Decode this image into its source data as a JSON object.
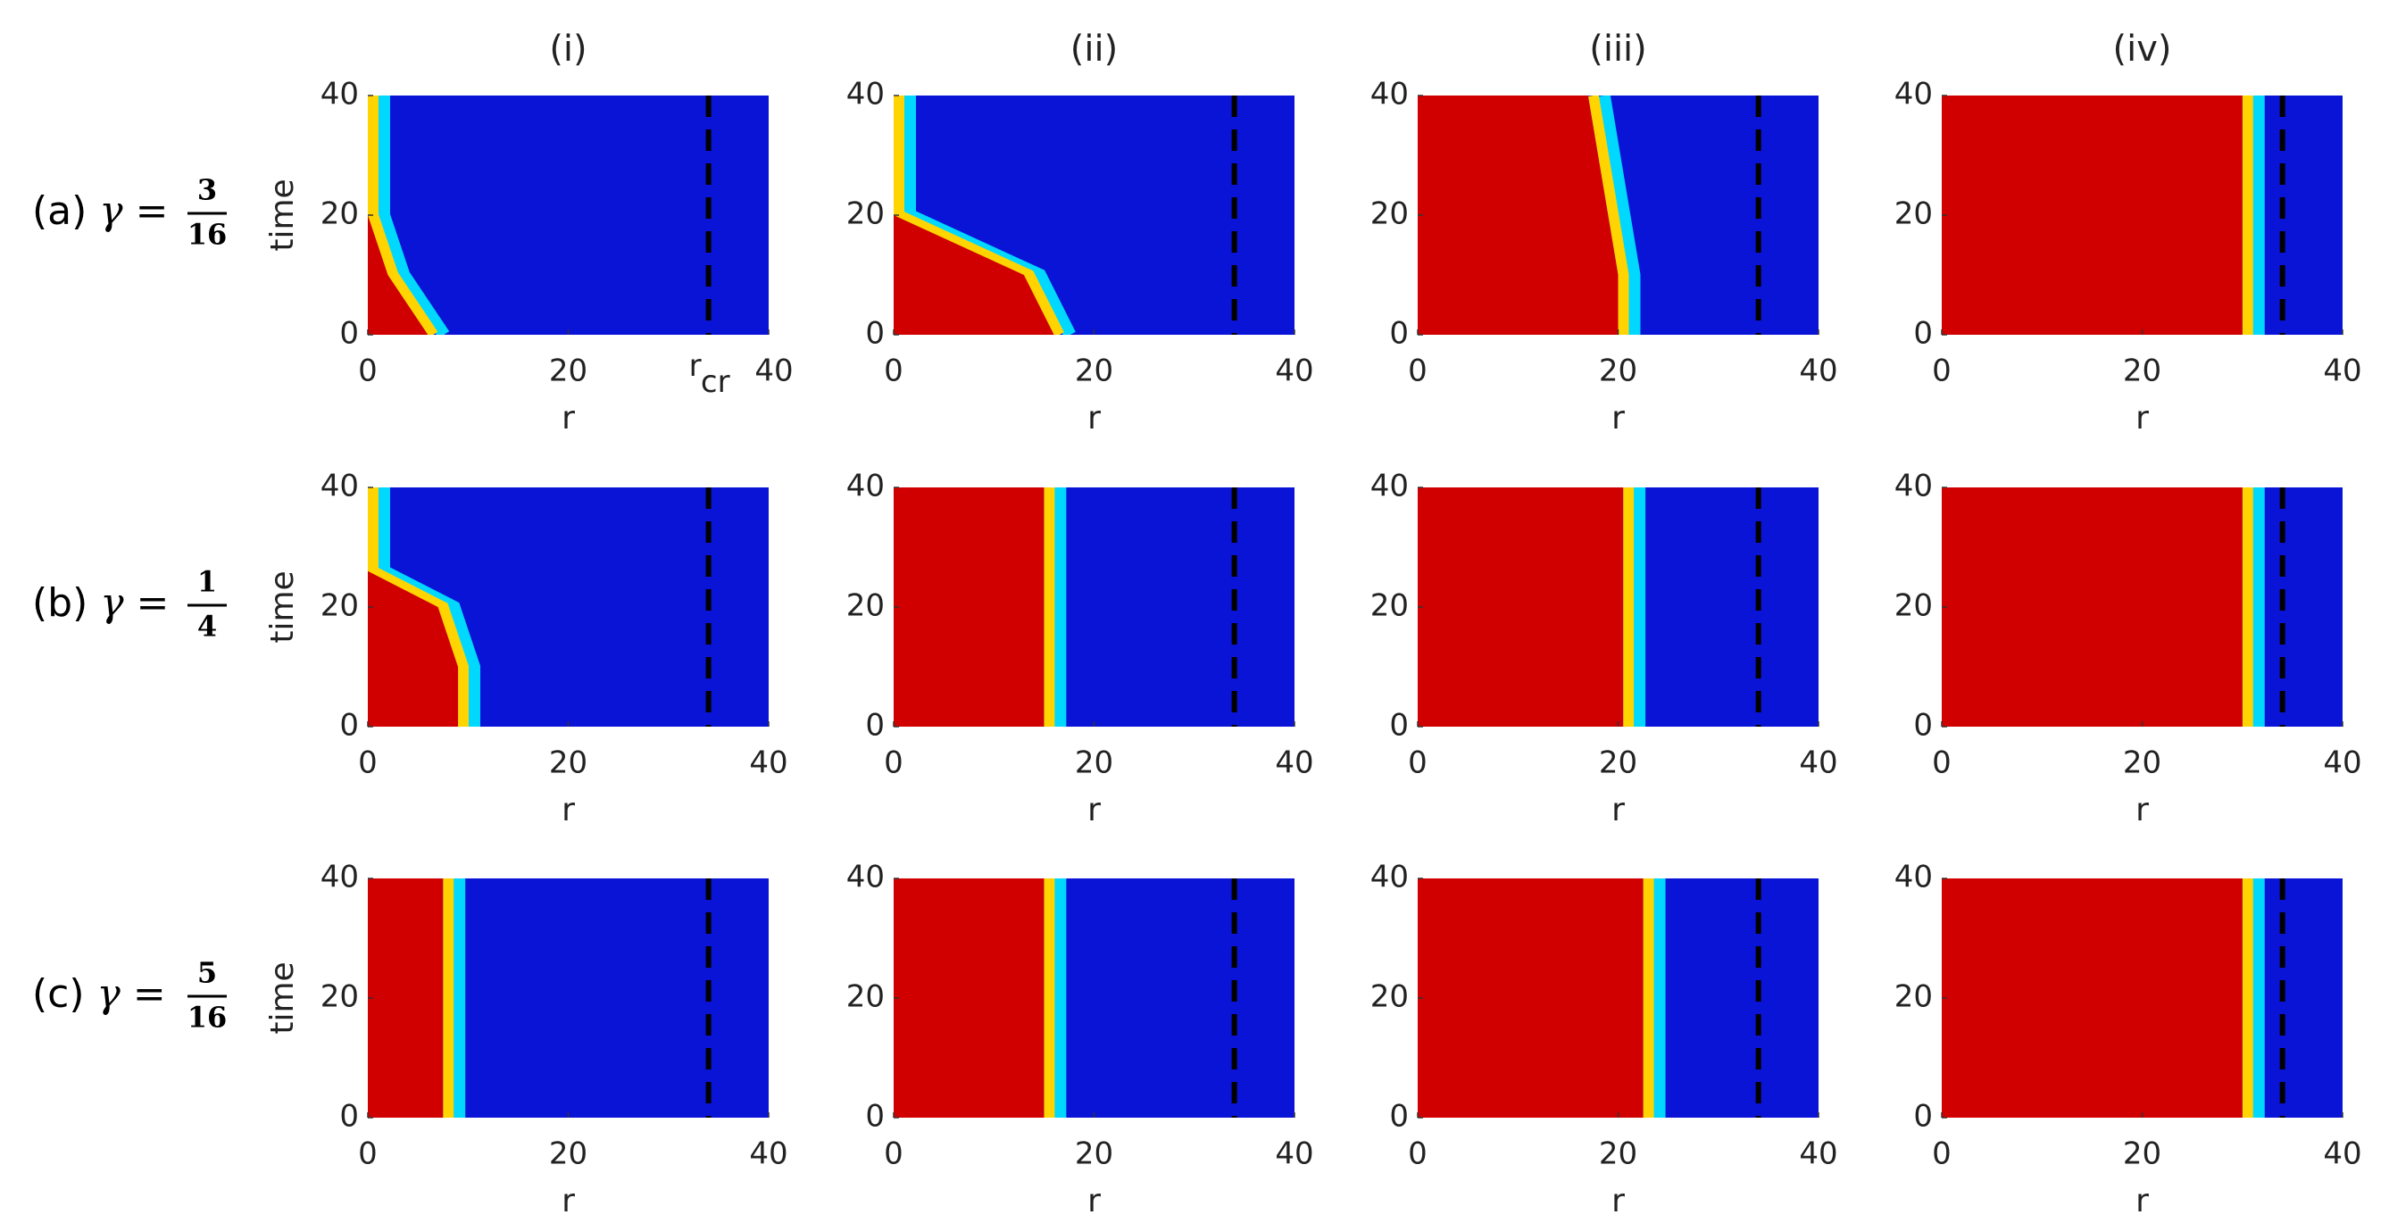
{
  "column_titles": [
    "(i)",
    "(ii)",
    "(iii)",
    "(iv)"
  ],
  "row_labels": [
    {
      "prefix": "(a)",
      "symbol": "γ =",
      "num": "3",
      "den": "16"
    },
    {
      "prefix": "(b)",
      "symbol": "γ =",
      "num": "1",
      "den": "4"
    },
    {
      "prefix": "(c)",
      "symbol": "γ =",
      "num": "5",
      "den": "16"
    }
  ],
  "rcr_label": {
    "main": "r",
    "sub": "cr"
  },
  "colors": {
    "low": "#0a14d6",
    "mid_low": "#00d8ff",
    "mid_high": "#ffd400",
    "high": "#d00000",
    "marker": "#000000"
  },
  "chart_data": [
    {
      "type": "heatmap",
      "ylabel": "time",
      "xlabel": "r",
      "x": [
        0,
        10,
        20,
        30,
        40
      ],
      "values": [
        6,
        2,
        0,
        0,
        0
      ],
      "rcr": 34,
      "xlim": [
        0,
        40
      ],
      "ylim": [
        0,
        40
      ],
      "xticks": [
        0,
        20,
        40
      ],
      "yticks": [
        0,
        20,
        40
      ]
    },
    {
      "type": "heatmap",
      "xlabel": "r",
      "x": [
        0,
        10,
        20,
        30,
        40
      ],
      "values": [
        16,
        13,
        0,
        0,
        0
      ],
      "rcr": 34,
      "xlim": [
        0,
        40
      ],
      "ylim": [
        0,
        40
      ],
      "xticks": [
        0,
        20,
        40
      ],
      "yticks": [
        0,
        20,
        40
      ]
    },
    {
      "type": "heatmap",
      "xlabel": "r",
      "x": [
        0,
        10,
        20,
        30,
        40
      ],
      "values": [
        20,
        20,
        19,
        18,
        17
      ],
      "rcr": 34,
      "xlim": [
        0,
        40
      ],
      "ylim": [
        0,
        40
      ],
      "xticks": [
        0,
        20,
        40
      ],
      "yticks": [
        0,
        20,
        40
      ]
    },
    {
      "type": "heatmap",
      "xlabel": "r",
      "x": [
        0,
        10,
        20,
        30,
        40
      ],
      "values": [
        30,
        30,
        30,
        30,
        30
      ],
      "rcr": 34,
      "xlim": [
        0,
        40
      ],
      "ylim": [
        0,
        40
      ],
      "xticks": [
        0,
        20,
        40
      ],
      "yticks": [
        0,
        20,
        40
      ]
    },
    {
      "type": "heatmap",
      "ylabel": "time",
      "xlabel": "r",
      "x": [
        0,
        10,
        20,
        26,
        30,
        40
      ],
      "values": [
        9,
        9,
        7,
        0,
        0,
        0
      ],
      "rcr": 34,
      "xlim": [
        0,
        40
      ],
      "ylim": [
        0,
        40
      ],
      "xticks": [
        0,
        20,
        40
      ],
      "yticks": [
        0,
        20,
        40
      ]
    },
    {
      "type": "heatmap",
      "xlabel": "r",
      "x": [
        0,
        10,
        20,
        30,
        40
      ],
      "values": [
        15,
        15,
        15,
        15,
        15
      ],
      "rcr": 34,
      "xlim": [
        0,
        40
      ],
      "ylim": [
        0,
        40
      ],
      "xticks": [
        0,
        20,
        40
      ],
      "yticks": [
        0,
        20,
        40
      ]
    },
    {
      "type": "heatmap",
      "xlabel": "r",
      "x": [
        0,
        10,
        20,
        30,
        40
      ],
      "values": [
        20.5,
        20.5,
        20.5,
        20.5,
        20.5
      ],
      "rcr": 34,
      "xlim": [
        0,
        40
      ],
      "ylim": [
        0,
        40
      ],
      "xticks": [
        0,
        20,
        40
      ],
      "yticks": [
        0,
        20,
        40
      ]
    },
    {
      "type": "heatmap",
      "xlabel": "r",
      "x": [
        0,
        10,
        20,
        30,
        40
      ],
      "values": [
        30,
        30,
        30,
        30,
        30
      ],
      "rcr": 34,
      "xlim": [
        0,
        40
      ],
      "ylim": [
        0,
        40
      ],
      "xticks": [
        0,
        20,
        40
      ],
      "yticks": [
        0,
        20,
        40
      ]
    },
    {
      "type": "heatmap",
      "ylabel": "time",
      "xlabel": "r",
      "x": [
        0,
        10,
        20,
        30,
        40
      ],
      "values": [
        7.5,
        7.5,
        7.5,
        7.5,
        7.5
      ],
      "rcr": 34,
      "xlim": [
        0,
        40
      ],
      "ylim": [
        0,
        40
      ],
      "xticks": [
        0,
        20,
        40
      ],
      "yticks": [
        0,
        20,
        40
      ]
    },
    {
      "type": "heatmap",
      "xlabel": "r",
      "x": [
        0,
        10,
        20,
        30,
        40
      ],
      "values": [
        15,
        15,
        15,
        15,
        15
      ],
      "rcr": 34,
      "xlim": [
        0,
        40
      ],
      "ylim": [
        0,
        40
      ],
      "xticks": [
        0,
        20,
        40
      ],
      "yticks": [
        0,
        20,
        40
      ]
    },
    {
      "type": "heatmap",
      "xlabel": "r",
      "x": [
        0,
        10,
        20,
        30,
        40
      ],
      "values": [
        22.5,
        22.5,
        22.5,
        22.5,
        22.5
      ],
      "rcr": 34,
      "xlim": [
        0,
        40
      ],
      "ylim": [
        0,
        40
      ],
      "xticks": [
        0,
        20,
        40
      ],
      "yticks": [
        0,
        20,
        40
      ]
    },
    {
      "type": "heatmap",
      "xlabel": "r",
      "x": [
        0,
        10,
        20,
        30,
        40
      ],
      "values": [
        30,
        30,
        30,
        30,
        30
      ],
      "rcr": 34,
      "xlim": [
        0,
        40
      ],
      "ylim": [
        0,
        40
      ],
      "xticks": [
        0,
        20,
        40
      ],
      "yticks": [
        0,
        20,
        40
      ]
    }
  ]
}
